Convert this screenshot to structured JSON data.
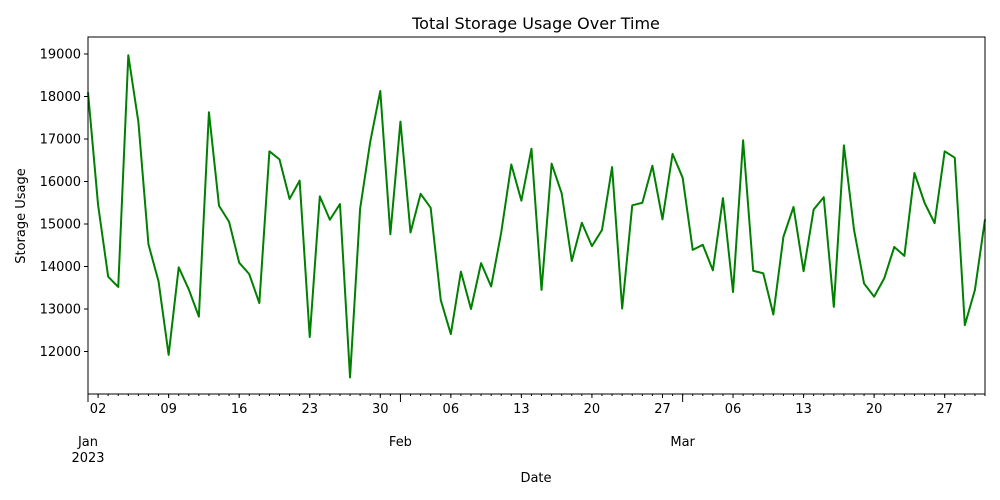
{
  "chart_data": {
    "type": "line",
    "title": "Total Storage Usage Over Time",
    "xlabel": "Date",
    "ylabel": "Storage Usage",
    "x_start": "2023-01-01",
    "x_end": "2023-03-31",
    "ylim": [
      11000,
      19400
    ],
    "y_ticks": [
      12000,
      13000,
      14000,
      15000,
      16000,
      17000,
      18000,
      19000
    ],
    "x_ticks": [
      {
        "date": "2023-01-02",
        "label": "02"
      },
      {
        "date": "2023-01-09",
        "label": "09"
      },
      {
        "date": "2023-01-16",
        "label": "16"
      },
      {
        "date": "2023-01-23",
        "label": "23"
      },
      {
        "date": "2023-01-30",
        "label": "30"
      },
      {
        "date": "2023-02-06",
        "label": "06"
      },
      {
        "date": "2023-02-13",
        "label": "13"
      },
      {
        "date": "2023-02-20",
        "label": "20"
      },
      {
        "date": "2023-02-27",
        "label": "27"
      },
      {
        "date": "2023-03-06",
        "label": "06"
      },
      {
        "date": "2023-03-13",
        "label": "13"
      },
      {
        "date": "2023-03-20",
        "label": "20"
      },
      {
        "date": "2023-03-27",
        "label": "27"
      }
    ],
    "month_ticks": [
      {
        "date": "2023-01-01",
        "label": "Jan",
        "sublabel": "2023"
      },
      {
        "date": "2023-02-01",
        "label": "Feb",
        "sublabel": ""
      },
      {
        "date": "2023-03-01",
        "label": "Mar",
        "sublabel": ""
      }
    ],
    "grid": false,
    "line_color": "#008000",
    "series": [
      {
        "values": [
          18100,
          15450,
          13760,
          13520,
          18970,
          17400,
          14520,
          13650,
          11920,
          13980,
          13460,
          12820,
          17630,
          15430,
          15050,
          14090,
          13820,
          13140,
          16710,
          16520,
          15590,
          16020,
          12340,
          15650,
          15100,
          15470,
          11390,
          15360,
          16930,
          18130,
          14760,
          17410,
          14800,
          15710,
          15380,
          13210,
          12410,
          13880,
          13000,
          14080,
          13530,
          14800,
          16400,
          15550,
          16770,
          13450,
          16420,
          15720,
          14130,
          15030,
          14480,
          14860,
          16340,
          13010,
          15440,
          15500,
          16370,
          15110,
          16650,
          16090,
          14390,
          14510,
          13910,
          15610,
          13400,
          16970,
          13900,
          13840,
          12870,
          14700,
          15400,
          13890,
          15340,
          15630,
          13050,
          16850,
          14870,
          13600,
          13290,
          13720,
          14460,
          14250,
          16200,
          15500,
          15020,
          16710,
          16560,
          12620,
          13450,
          15110
        ]
      }
    ]
  }
}
